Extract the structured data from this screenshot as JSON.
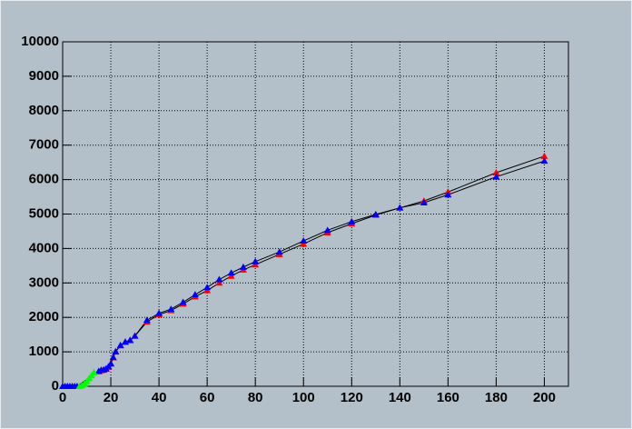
{
  "chart_data": {
    "type": "scatter",
    "xlim": [
      0,
      210
    ],
    "ylim": [
      0,
      10000
    ],
    "xticks": [
      0,
      20,
      40,
      60,
      80,
      100,
      120,
      140,
      160,
      180,
      200
    ],
    "yticks": [
      0,
      1000,
      2000,
      3000,
      4000,
      5000,
      6000,
      7000,
      8000,
      9000,
      10000
    ],
    "grid": true,
    "line_color": "#000000",
    "series": [
      {
        "color": "#ff0000",
        "x": [
          15,
          16,
          17,
          18,
          19,
          20,
          21,
          22,
          24,
          26,
          28,
          30,
          35,
          40,
          45,
          50,
          55,
          60,
          65,
          70,
          75,
          80,
          90,
          100,
          110,
          120,
          130,
          140,
          150,
          160,
          180,
          200
        ],
        "values": [
          430,
          460,
          470,
          500,
          560,
          650,
          830,
          1000,
          1180,
          1280,
          1330,
          1460,
          1870,
          2080,
          2200,
          2390,
          2600,
          2780,
          3000,
          3200,
          3380,
          3530,
          3830,
          4130,
          4460,
          4720,
          4970,
          5180,
          5380,
          5640,
          6200,
          6680
        ]
      },
      {
        "color": "#0000ff",
        "x": [
          0,
          1,
          2,
          3,
          4,
          5,
          6,
          15,
          16,
          17,
          18,
          19,
          20,
          21,
          22,
          24,
          26,
          28,
          30,
          35,
          40,
          45,
          50,
          55,
          60,
          65,
          70,
          75,
          80,
          90,
          100,
          110,
          120,
          130,
          140,
          150,
          160,
          180,
          200
        ],
        "values": [
          0,
          0,
          0,
          0,
          0,
          0,
          0,
          440,
          470,
          480,
          510,
          570,
          660,
          840,
          1010,
          1190,
          1290,
          1340,
          1460,
          1920,
          2120,
          2240,
          2440,
          2660,
          2870,
          3100,
          3290,
          3460,
          3620,
          3900,
          4220,
          4530,
          4780,
          4990,
          5180,
          5330,
          5560,
          6080,
          6540
        ]
      },
      {
        "color": "#00ff00",
        "x": [
          7,
          8,
          9,
          10,
          11,
          12,
          13
        ],
        "values": [
          0,
          20,
          70,
          140,
          230,
          310,
          400
        ]
      }
    ]
  }
}
